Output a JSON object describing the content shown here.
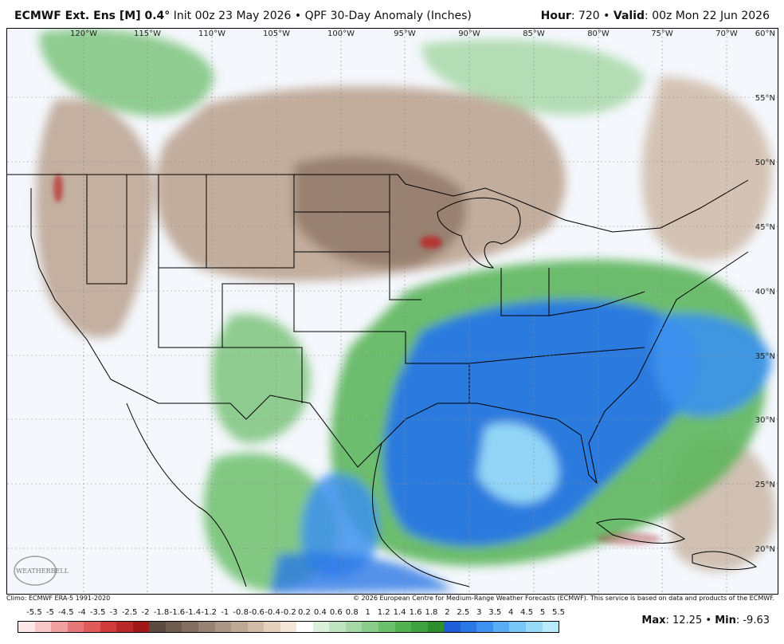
{
  "header": {
    "model": "ECMWF Ext. Ens [M] 0.4",
    "degree": "°",
    "init_label": "Init 00z 23 May 2026",
    "bullet": "•",
    "product": "QPF 30-Day Anomaly (Inches)",
    "hour_key": "Hour",
    "hour_value": ": 720",
    "valid_key": "Valid",
    "valid_value": ": 00z Mon 22 Jun 2026"
  },
  "map": {
    "lon_labels": [
      "120°W",
      "115°W",
      "110°W",
      "105°W",
      "100°W",
      "95°W",
      "90°W",
      "85°W",
      "80°W",
      "75°W",
      "70°W"
    ],
    "lat_labels": [
      "60°N",
      "55°N",
      "50°N",
      "45°N",
      "40°N",
      "35°N",
      "30°N",
      "25°N",
      "20°N"
    ],
    "watermark": "WEATHERBELL"
  },
  "footer": {
    "climo": "Climo: ECMWF ERA-5 1991-2020",
    "copyright": "© 2026 European Centre for Medium-Range Weather Forecasts (ECMWF). This service is based on data and products of the ECMWF.",
    "max_key": "Max",
    "max_value": ": 12.25",
    "min_key": "Min",
    "min_value": ": -9.63"
  },
  "legend": {
    "labels": [
      "-5.5",
      "-5",
      "-4.5",
      "-4",
      "-3.5",
      "-3",
      "-2.5",
      "-2",
      "-1.8",
      "-1.6",
      "-1.4",
      "-1.2",
      "-1",
      "-0.8",
      "-0.6",
      "-0.4",
      "-0.2",
      "0.2",
      "0.4",
      "0.6",
      "0.8",
      "1",
      "1.2",
      "1.4",
      "1.6",
      "1.8",
      "2",
      "2.5",
      "3",
      "3.5",
      "4",
      "4.5",
      "5",
      "5.5"
    ],
    "colors": [
      "#fde6e6",
      "#f8c8c8",
      "#f0a0a0",
      "#e87878",
      "#e05a5a",
      "#d03c3c",
      "#b82828",
      "#a01818",
      "#5a4a40",
      "#6e5c50",
      "#826e60",
      "#968272",
      "#aa9684",
      "#bea896",
      "#d2bca8",
      "#e6d2bc",
      "#f4e6d8",
      "#ffffff",
      "#dcf0dc",
      "#c0e4c0",
      "#a4d8a4",
      "#88cc88",
      "#6cbf6c",
      "#52b252",
      "#3ea23e",
      "#2e8e2e",
      "#1e5ed8",
      "#2a78e6",
      "#3c92ee",
      "#58aef4",
      "#78c6f8",
      "#98daf8",
      "#b8eafc"
    ]
  }
}
